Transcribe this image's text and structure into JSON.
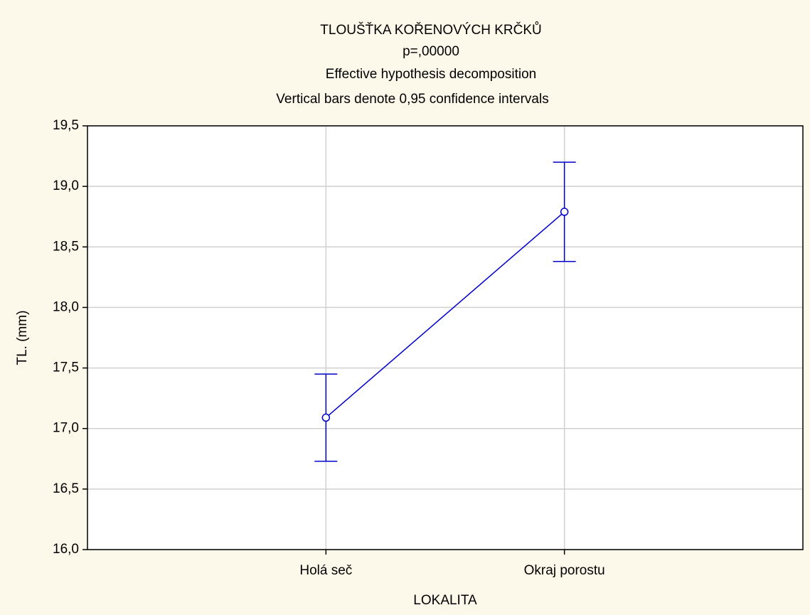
{
  "chart_data": {
    "type": "line",
    "title": "TLOUŠŤKA KOŘENOVÝCH KRČKŮ",
    "subtitle": [
      "p=,00000",
      "Effective hypothesis decomposition",
      "Vertical bars denote 0,95 confidence intervals"
    ],
    "x_label": "LOKALITA",
    "y_label": "TL. (mm)",
    "categories": [
      "Holá seč",
      "Okraj porostu"
    ],
    "series": [
      {
        "name": "TL. (mm)",
        "color": "#0000cc",
        "values": [
          17.09,
          18.79
        ],
        "errors": [
          0.36,
          0.41
        ]
      }
    ],
    "ylim": [
      16,
      19.5
    ],
    "yticks": [
      {
        "value": 16,
        "label": "16,0"
      },
      {
        "value": 16.5,
        "label": "16,5"
      },
      {
        "value": 17,
        "label": "17,0"
      },
      {
        "value": 17.5,
        "label": "17,5"
      },
      {
        "value": 18,
        "label": "18,0"
      },
      {
        "value": 18.5,
        "label": "18,5"
      },
      {
        "value": 19,
        "label": "19,0"
      },
      {
        "value": 19.5,
        "label": "19,5"
      }
    ],
    "grid": true
  }
}
